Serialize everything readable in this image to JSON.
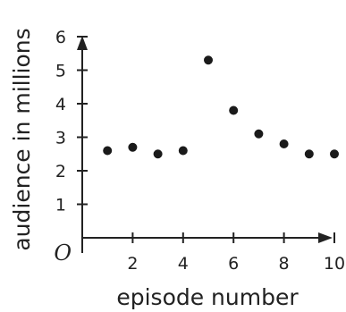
{
  "chart_data": {
    "type": "scatter",
    "title": "",
    "xlabel": "episode number",
    "ylabel": "audience in millions",
    "origin_label": "O",
    "x_ticks": [
      "2",
      "4",
      "6",
      "8",
      "10"
    ],
    "y_ticks": [
      "1",
      "2",
      "3",
      "4",
      "5",
      "6"
    ],
    "xlim": [
      0,
      10
    ],
    "ylim": [
      0,
      6
    ],
    "grid": false,
    "series": [
      {
        "x": [
          1,
          2,
          3,
          4,
          5,
          6,
          7,
          8,
          9,
          10
        ],
        "y": [
          2.6,
          2.7,
          2.5,
          2.6,
          5.3,
          3.8,
          3.1,
          2.8,
          2.5,
          2.5
        ]
      }
    ]
  }
}
